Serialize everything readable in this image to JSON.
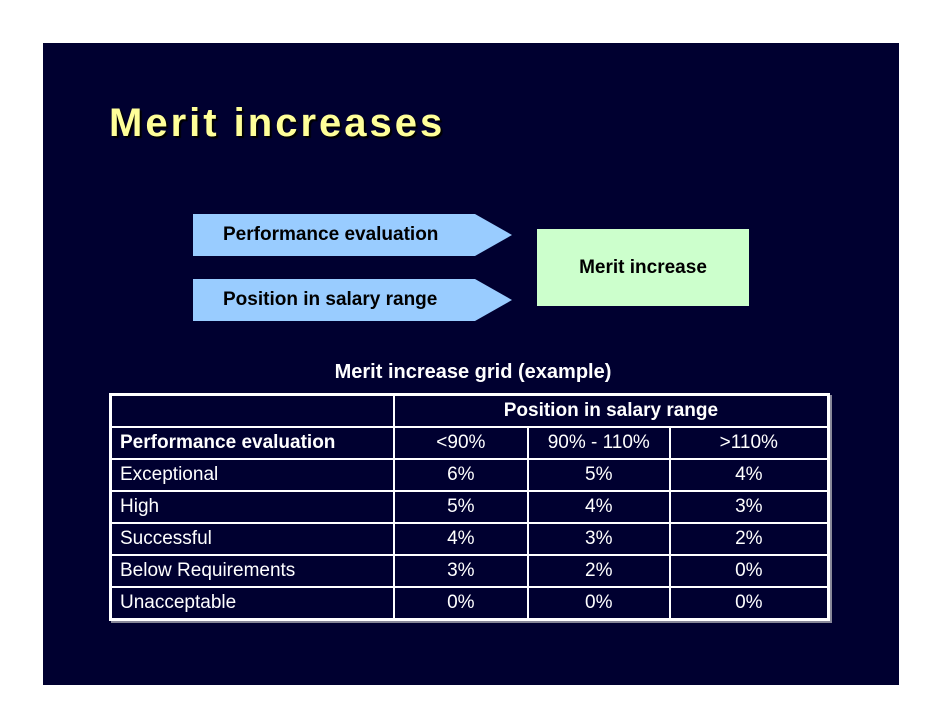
{
  "slide": {
    "title": "Merit increases",
    "colors": {
      "background": "#000030",
      "title": "#ffff99",
      "input_arrows": "#99ccff",
      "result_box": "#ccffcc",
      "table_text": "#ffffff"
    },
    "diagram": {
      "inputs": [
        {
          "label": "Performance evaluation"
        },
        {
          "label": "Position in salary range"
        }
      ],
      "output": {
        "label": "Merit increase"
      }
    },
    "grid": {
      "title": "Merit increase grid (example)",
      "group_header": "Position in salary range",
      "row_header": "Performance evaluation",
      "columns": [
        "<90%",
        "90% - 110%",
        ">110%"
      ],
      "rows": [
        {
          "label": "Exceptional",
          "values": [
            "6%",
            "5%",
            "4%"
          ]
        },
        {
          "label": "High",
          "values": [
            "5%",
            "4%",
            "3%"
          ]
        },
        {
          "label": "Successful",
          "values": [
            "4%",
            "3%",
            "2%"
          ]
        },
        {
          "label": "Below Requirements",
          "values": [
            "3%",
            "2%",
            "0%"
          ]
        },
        {
          "label": "Unacceptable",
          "values": [
            "0%",
            "0%",
            "0%"
          ]
        }
      ]
    }
  }
}
